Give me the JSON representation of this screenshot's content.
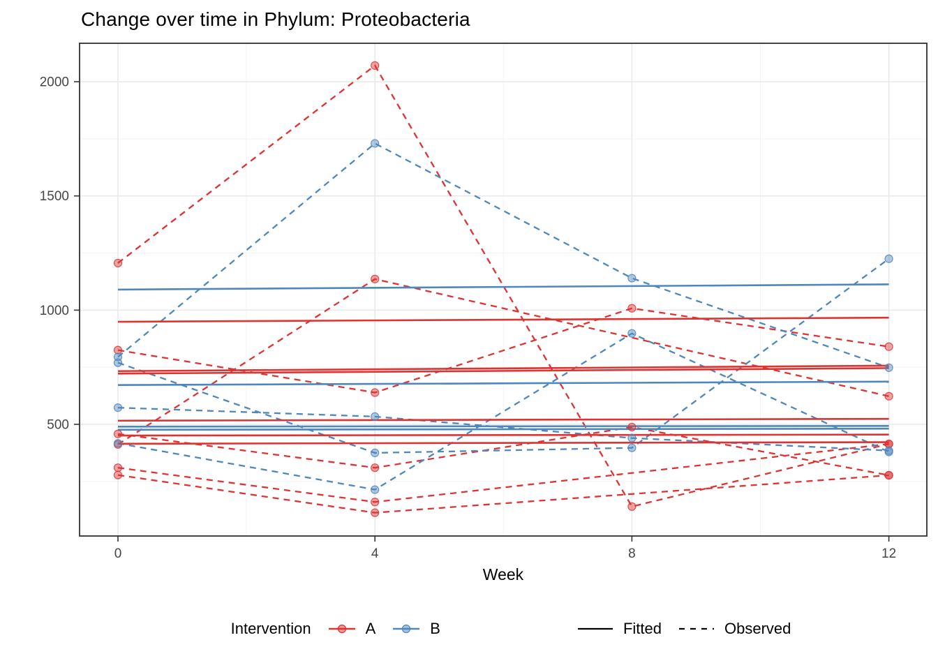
{
  "title": "Change over time in Phylum: Proteobacteria",
  "axes": {
    "x": {
      "label": "Week",
      "ticks": [
        0,
        4,
        8,
        12
      ],
      "minor_ticks": [
        2,
        6,
        10
      ],
      "range": [
        -0.6,
        12.6
      ]
    },
    "y": {
      "ticks": [
        500,
        1000,
        1500,
        2000
      ],
      "minor_ticks": [
        250,
        750,
        1250,
        1750
      ],
      "range": [
        11,
        2168
      ]
    }
  },
  "legend": {
    "title": "Intervention",
    "groups": [
      {
        "label": "A",
        "color": "#DD3432"
      },
      {
        "label": "B",
        "color": "#4E87BC"
      }
    ],
    "linetypes": [
      {
        "label": "Fitted",
        "style": "solid",
        "color": "#000000"
      },
      {
        "label": "Observed",
        "style": "dashed",
        "color": "#000000"
      }
    ]
  },
  "chart_data": {
    "type": "line",
    "title": "Change over time in Phylum: Proteobacteria",
    "xlabel": "Week",
    "ylabel": "",
    "x_weeks": [
      0,
      4,
      8,
      12
    ],
    "grid": true,
    "legend_position": "bottom",
    "series": [
      {
        "group": "A",
        "subject": "A1",
        "observed": [
          1206,
          2071,
          140,
          414
        ],
        "fitted": [
          949,
          967
        ]
      },
      {
        "group": "A",
        "subject": "A2",
        "observed": [
          412,
          1136,
          null,
          623
        ],
        "fitted": [
          722,
          746
        ]
      },
      {
        "group": "A",
        "subject": "A3",
        "observed": [
          825,
          639,
          1008,
          840
        ],
        "fitted": [
          733,
          757
        ]
      },
      {
        "group": "A",
        "subject": "A4",
        "observed": [
          458,
          310,
          488,
          277
        ],
        "fitted": [
          516,
          524
        ]
      },
      {
        "group": "A",
        "subject": "A5",
        "observed": [
          310,
          160,
          null,
          414
        ],
        "fitted": [
          451,
          455
        ]
      },
      {
        "group": "A",
        "subject": "A6",
        "observed": [
          278,
          113,
          null,
          277
        ],
        "fitted": [
          415,
          422
        ]
      },
      {
        "group": "B",
        "subject": "B1",
        "observed": [
          795,
          1730,
          1140,
          748
        ],
        "fitted": [
          1090,
          1113
        ]
      },
      {
        "group": "B",
        "subject": "B2",
        "observed": [
          770,
          375,
          397,
          1225
        ],
        "fitted": [
          672,
          687
        ]
      },
      {
        "group": "B",
        "subject": "B3",
        "observed": [
          573,
          534,
          440,
          385
        ],
        "fitted": [
          490,
          493
        ]
      },
      {
        "group": "B",
        "subject": "B4",
        "observed": [
          417,
          214,
          898,
          379
        ],
        "fitted": [
          476,
          481
        ]
      }
    ]
  },
  "style": {
    "panel_border_color": "#2F2F2F",
    "grid_major_color": "#E8E8E8",
    "grid_minor_color": "#F3F3F3",
    "tick_label_color": "#454545",
    "point_fill_opacity": 0.45
  }
}
